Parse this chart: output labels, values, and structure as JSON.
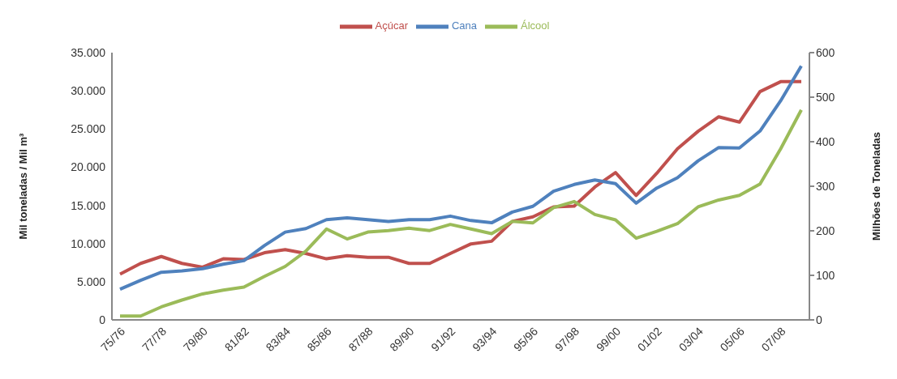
{
  "chart_data": {
    "type": "line",
    "ylabel": "Mil toneladas  / Mil m³",
    "y2label": "Milhões de Toneladas",
    "categories": [
      "75/76",
      null,
      "77/78",
      null,
      "79/80",
      null,
      "81/82",
      null,
      "83/84",
      null,
      "85/86",
      null,
      "87/88",
      null,
      "89/90",
      null,
      "91/92",
      null,
      "93/94",
      null,
      "95/96",
      null,
      "97/98",
      null,
      "99/00",
      null,
      "01/02",
      null,
      "03/04",
      null,
      "05/06",
      null,
      "07/08",
      null
    ],
    "series": [
      {
        "name": "Açúcar",
        "color": "#c0504d",
        "values": [
          6000,
          7400,
          8300,
          7400,
          6900,
          8000,
          7900,
          8800,
          9200,
          8700,
          8000,
          8400,
          8200,
          8200,
          7400,
          7400,
          8700,
          9950,
          10300,
          12900,
          13500,
          14800,
          14900,
          17400,
          19300,
          16300,
          19200,
          22400,
          24700,
          26600,
          25900,
          29900,
          31200,
          31200
        ]
      },
      {
        "name": "Álcool",
        "color": "#9bbb59",
        "values": [
          500,
          500,
          1700,
          2600,
          3400,
          3900,
          4300,
          5700,
          7000,
          9000,
          11900,
          10600,
          11500,
          11700,
          12000,
          11700,
          12500,
          11900,
          11300,
          12900,
          12700,
          14700,
          15500,
          13800,
          13100,
          10700,
          11600,
          12600,
          14800,
          15700,
          16300,
          17800,
          22400,
          27500
        ]
      },
      {
        "name": "Cana",
        "color": "#4f81bd",
        "axis": "y2",
        "values": [
          69,
          89,
          107,
          110,
          115,
          125,
          133,
          167,
          197,
          205,
          225,
          229,
          225,
          221,
          225,
          225,
          233,
          223,
          218,
          242,
          255,
          289,
          304,
          314,
          306,
          262,
          296,
          319,
          357,
          387,
          386,
          424,
          492,
          570
        ]
      }
    ],
    "ylim": [
      0,
      35000
    ],
    "yticks": [
      0,
      {
        "value": 5000,
        "label": "5.000"
      },
      {
        "value": 10000,
        "label": "10.000"
      },
      {
        "value": 15000,
        "label": "15.000"
      },
      {
        "value": 20000,
        "label": "20.000"
      },
      {
        "value": 25000,
        "label": "25.000"
      },
      {
        "value": 30000,
        "label": "30.000"
      },
      {
        "value": 35000,
        "label": "35.000"
      }
    ],
    "y2lim": [
      0,
      600
    ],
    "y2ticks": [
      0,
      100,
      200,
      300,
      400,
      500,
      600
    ],
    "legend": "top",
    "grid": false,
    "marker": "none",
    "line_style": "solid"
  }
}
